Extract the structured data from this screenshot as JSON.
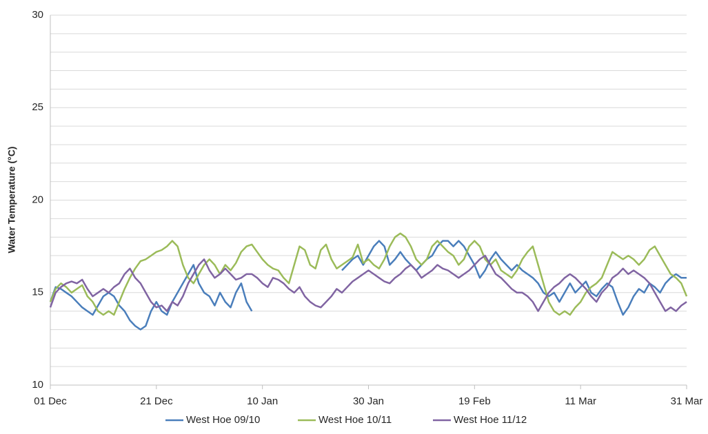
{
  "chart_data": {
    "type": "line",
    "y_label": "Water Temperature (°C)",
    "x": [
      0,
      1,
      2,
      3,
      4,
      5,
      6,
      7,
      8,
      9,
      10,
      11,
      12,
      13,
      14,
      15,
      16,
      17,
      18,
      19,
      20,
      21,
      22,
      23,
      24,
      25,
      26,
      27,
      28,
      29,
      30,
      31,
      32,
      33,
      34,
      35,
      36,
      37,
      38,
      39,
      40,
      41,
      42,
      43,
      44,
      45,
      46,
      47,
      48,
      49,
      50,
      51,
      52,
      53,
      54,
      55,
      56,
      57,
      58,
      59,
      60,
      61,
      62,
      63,
      64,
      65,
      66,
      67,
      68,
      69,
      70,
      71,
      72,
      73,
      74,
      75,
      76,
      77,
      78,
      79,
      80,
      81,
      82,
      83,
      84,
      85,
      86,
      87,
      88,
      89,
      90,
      91,
      92,
      93,
      94,
      95,
      96,
      97,
      98,
      99,
      100,
      101,
      102,
      103,
      104,
      105,
      106,
      107,
      108,
      109,
      110,
      111,
      112,
      113,
      114,
      115,
      116,
      117,
      118,
      119,
      120
    ],
    "xlim": [
      0,
      120
    ],
    "xticks": [
      {
        "value": 0,
        "label": "01 Dec"
      },
      {
        "value": 20,
        "label": "21 Dec"
      },
      {
        "value": 40,
        "label": "10 Jan"
      },
      {
        "value": 60,
        "label": "30 Jan"
      },
      {
        "value": 80,
        "label": "19 Feb"
      },
      {
        "value": 100,
        "label": "11 Mar"
      },
      {
        "value": 120,
        "label": "31 Mar"
      }
    ],
    "ylim": [
      10,
      30
    ],
    "yticks": [
      10,
      15,
      20,
      25,
      30
    ],
    "minor_yticks": [
      11,
      12,
      13,
      14,
      16,
      17,
      18,
      19,
      21,
      22,
      23,
      24,
      26,
      27,
      28,
      29
    ],
    "grid": true,
    "legend": "bottom",
    "series": [
      {
        "name": "West Hoe 09/10",
        "color": "#4a7ebb",
        "values": [
          14.5,
          15.3,
          15.2,
          15.0,
          14.8,
          14.5,
          14.2,
          14.0,
          13.8,
          14.3,
          14.8,
          15.0,
          14.8,
          14.3,
          14.0,
          13.5,
          13.2,
          13.0,
          13.2,
          14.0,
          14.5,
          14.0,
          13.8,
          14.5,
          15.0,
          15.5,
          16.0,
          16.5,
          15.5,
          15.0,
          14.8,
          14.3,
          15.0,
          14.5,
          14.2,
          15.0,
          15.5,
          14.5,
          14.0,
          null,
          null,
          null,
          null,
          null,
          null,
          null,
          null,
          null,
          null,
          null,
          null,
          null,
          null,
          null,
          null,
          16.2,
          16.5,
          16.8,
          17.0,
          16.5,
          17.0,
          17.5,
          17.8,
          17.5,
          16.5,
          16.8,
          17.2,
          16.8,
          16.5,
          16.2,
          16.5,
          16.8,
          17.0,
          17.5,
          17.8,
          17.8,
          17.5,
          17.8,
          17.5,
          17.0,
          16.5,
          15.8,
          16.2,
          16.8,
          17.2,
          16.8,
          16.5,
          16.2,
          16.5,
          16.2,
          16.0,
          15.8,
          15.5,
          15.0,
          14.8,
          15.0,
          14.5,
          15.0,
          15.5,
          15.0,
          15.3,
          15.6,
          15.0,
          14.8,
          15.2,
          15.5,
          15.3,
          14.5,
          13.8,
          14.2,
          14.8,
          15.2,
          15.0,
          15.5,
          15.3,
          15.0,
          15.5,
          15.8,
          16.0,
          15.8,
          15.8
        ]
      },
      {
        "name": "West Hoe 10/11",
        "color": "#9bbb59",
        "values": [
          14.5,
          15.2,
          15.5,
          15.3,
          15.0,
          15.2,
          15.4,
          14.8,
          14.5,
          14.0,
          13.8,
          14.0,
          13.8,
          14.5,
          15.2,
          15.8,
          16.3,
          16.7,
          16.8,
          17.0,
          17.2,
          17.3,
          17.5,
          17.8,
          17.5,
          16.5,
          15.8,
          15.5,
          16.0,
          16.5,
          16.8,
          16.5,
          16.0,
          16.5,
          16.2,
          16.6,
          17.2,
          17.5,
          17.6,
          17.2,
          16.8,
          16.5,
          16.3,
          16.2,
          15.8,
          15.5,
          16.5,
          17.5,
          17.3,
          16.5,
          16.3,
          17.3,
          17.6,
          16.8,
          16.3,
          16.5,
          16.7,
          16.9,
          17.6,
          16.6,
          16.8,
          16.5,
          16.3,
          16.8,
          17.5,
          18.0,
          18.2,
          18.0,
          17.5,
          16.8,
          16.5,
          16.8,
          17.5,
          17.8,
          17.5,
          17.2,
          17.0,
          16.5,
          16.8,
          17.5,
          17.8,
          17.5,
          16.8,
          16.5,
          16.8,
          16.2,
          16.0,
          15.8,
          16.2,
          16.8,
          17.2,
          17.5,
          16.5,
          15.5,
          14.5,
          14.0,
          13.8,
          14.0,
          13.8,
          14.2,
          14.5,
          15.0,
          15.3,
          15.5,
          15.8,
          16.5,
          17.2,
          17.0,
          16.8,
          17.0,
          16.8,
          16.5,
          16.8,
          17.3,
          17.5,
          17.0,
          16.5,
          16.0,
          15.8,
          15.5,
          14.8
        ]
      },
      {
        "name": "West Hoe 11/12",
        "color": "#8064a2",
        "values": [
          14.2,
          15.0,
          15.3,
          15.5,
          15.6,
          15.5,
          15.7,
          15.2,
          14.8,
          15.0,
          15.2,
          15.0,
          15.3,
          15.5,
          16.0,
          16.3,
          15.8,
          15.5,
          15.0,
          14.5,
          14.2,
          14.3,
          14.0,
          14.5,
          14.3,
          14.8,
          15.5,
          16.0,
          16.5,
          16.8,
          16.2,
          15.8,
          16.0,
          16.3,
          16.0,
          15.7,
          15.8,
          16.0,
          16.0,
          15.8,
          15.5,
          15.3,
          15.8,
          15.7,
          15.5,
          15.2,
          15.0,
          15.3,
          14.8,
          14.5,
          14.3,
          14.2,
          14.5,
          14.8,
          15.2,
          15.0,
          15.3,
          15.6,
          15.8,
          16.0,
          16.2,
          16.0,
          15.8,
          15.6,
          15.5,
          15.8,
          16.0,
          16.3,
          16.5,
          16.2,
          15.8,
          16.0,
          16.2,
          16.5,
          16.3,
          16.2,
          16.0,
          15.8,
          16.0,
          16.2,
          16.5,
          16.8,
          17.0,
          16.5,
          16.0,
          15.8,
          15.5,
          15.2,
          15.0,
          15.0,
          14.8,
          14.5,
          14.0,
          14.5,
          15.0,
          15.3,
          15.5,
          15.8,
          16.0,
          15.8,
          15.5,
          15.2,
          14.8,
          14.5,
          15.0,
          15.3,
          15.8,
          16.0,
          16.3,
          16.0,
          16.2,
          16.0,
          15.8,
          15.5,
          15.0,
          14.5,
          14.0,
          14.2,
          14.0,
          14.3,
          14.5
        ]
      }
    ]
  }
}
